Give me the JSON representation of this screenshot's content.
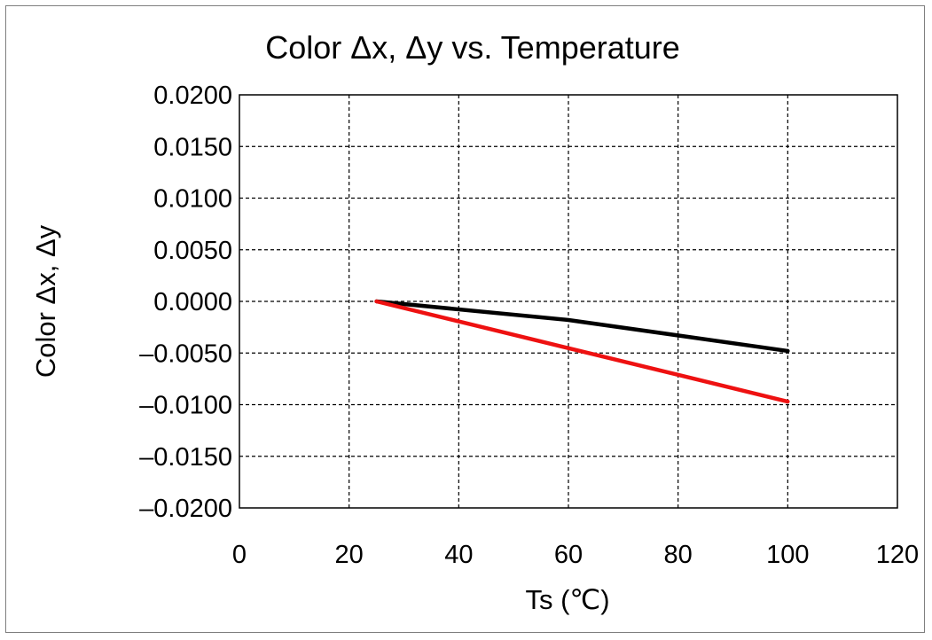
{
  "chart_data": {
    "type": "line",
    "title": "Color Δx, Δy vs. Temperature",
    "xlabel": "Ts (℃)",
    "ylabel": "Color Δx, Δy",
    "xlim": [
      0,
      120
    ],
    "ylim": [
      -0.02,
      0.02
    ],
    "x_ticks": [
      0,
      20,
      40,
      60,
      80,
      100,
      120
    ],
    "y_ticks": [
      0.02,
      0.015,
      0.01,
      0.005,
      0.0,
      -0.005,
      -0.01,
      -0.015,
      -0.02
    ],
    "x_tick_labels": [
      "0",
      "20",
      "40",
      "60",
      "80",
      "100",
      "120"
    ],
    "y_tick_labels": [
      "0.0200",
      "0.0150",
      "0.0100",
      "0.0050",
      "0.0000",
      "–0.0050",
      "–0.0100",
      "–0.0150",
      "–0.0200"
    ],
    "grid": true,
    "legend": "none",
    "series": [
      {
        "color": "#000000",
        "x": [
          25,
          60,
          100
        ],
        "y": [
          0.0,
          -0.0018,
          -0.0048
        ]
      },
      {
        "color": "#ee1111",
        "x": [
          25,
          100
        ],
        "y": [
          0.0,
          -0.0097
        ]
      }
    ]
  }
}
